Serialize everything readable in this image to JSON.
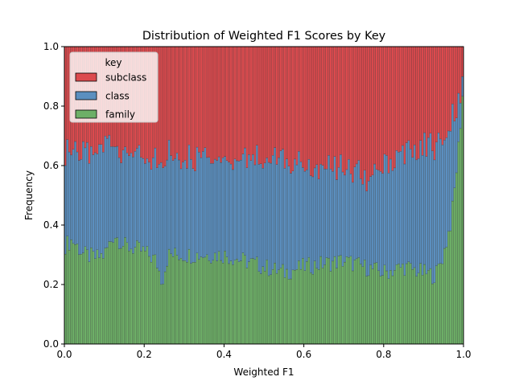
{
  "chart_data": {
    "type": "bar",
    "stacked": true,
    "normalized": true,
    "title": "Distribution of Weighted F1 Scores by Key",
    "xlabel": "Weighted F1",
    "ylabel": "Frequency",
    "xlim": [
      0,
      1
    ],
    "ylim": [
      0,
      1
    ],
    "xticks": [
      "0.0",
      "0.2",
      "0.4",
      "0.6",
      "0.8",
      "1.0"
    ],
    "yticks": [
      "0.0",
      "0.2",
      "0.4",
      "0.6",
      "0.8",
      "1.0"
    ],
    "grid": false,
    "legend": {
      "title": "key",
      "placement": "top-left"
    },
    "colors": {
      "subclass": "#dc4a4e",
      "class": "#5b8fbf",
      "family": "#6daf67",
      "edge": "#333333"
    },
    "bins": 200,
    "series": [
      {
        "name": "family",
        "control_x": [
          0.0,
          0.02,
          0.05,
          0.08,
          0.1,
          0.125,
          0.15,
          0.18,
          0.2,
          0.23,
          0.245,
          0.26,
          0.28,
          0.3,
          0.35,
          0.4,
          0.45,
          0.5,
          0.55,
          0.6,
          0.65,
          0.7,
          0.75,
          0.8,
          0.85,
          0.9,
          0.93,
          0.95,
          0.97,
          0.98,
          0.99,
          1.0
        ],
        "control_values": [
          0.33,
          0.35,
          0.3,
          0.29,
          0.3,
          0.37,
          0.33,
          0.32,
          0.31,
          0.28,
          0.21,
          0.3,
          0.3,
          0.3,
          0.3,
          0.3,
          0.28,
          0.26,
          0.24,
          0.26,
          0.27,
          0.28,
          0.26,
          0.24,
          0.26,
          0.24,
          0.23,
          0.3,
          0.42,
          0.55,
          0.7,
          0.88
        ]
      },
      {
        "name": "class",
        "control_x": [
          0.0,
          0.02,
          0.05,
          0.08,
          0.1,
          0.125,
          0.15,
          0.18,
          0.2,
          0.23,
          0.245,
          0.26,
          0.28,
          0.3,
          0.35,
          0.4,
          0.45,
          0.5,
          0.55,
          0.6,
          0.65,
          0.7,
          0.75,
          0.8,
          0.85,
          0.9,
          0.93,
          0.95,
          0.97,
          0.98,
          0.99,
          1.0
        ],
        "control_values": [
          0.33,
          0.31,
          0.35,
          0.35,
          0.36,
          0.3,
          0.31,
          0.3,
          0.3,
          0.34,
          0.4,
          0.34,
          0.33,
          0.33,
          0.34,
          0.33,
          0.34,
          0.35,
          0.37,
          0.33,
          0.32,
          0.31,
          0.3,
          0.36,
          0.38,
          0.42,
          0.44,
          0.38,
          0.34,
          0.22,
          0.12,
          0.06
        ]
      },
      {
        "name": "subclass",
        "control_x": [
          0.0,
          0.02,
          0.05,
          0.08,
          0.1,
          0.125,
          0.15,
          0.18,
          0.2,
          0.23,
          0.245,
          0.26,
          0.28,
          0.3,
          0.35,
          0.4,
          0.45,
          0.5,
          0.55,
          0.6,
          0.65,
          0.7,
          0.75,
          0.8,
          0.85,
          0.9,
          0.93,
          0.95,
          0.97,
          0.98,
          0.99,
          1.0
        ],
        "control_values": [
          0.34,
          0.34,
          0.35,
          0.36,
          0.34,
          0.33,
          0.36,
          0.38,
          0.39,
          0.38,
          0.39,
          0.36,
          0.37,
          0.37,
          0.36,
          0.37,
          0.38,
          0.39,
          0.39,
          0.41,
          0.41,
          0.41,
          0.44,
          0.4,
          0.36,
          0.34,
          0.33,
          0.32,
          0.24,
          0.23,
          0.18,
          0.06
        ]
      }
    ],
    "legend_entries": [
      "subclass",
      "class",
      "family"
    ]
  }
}
